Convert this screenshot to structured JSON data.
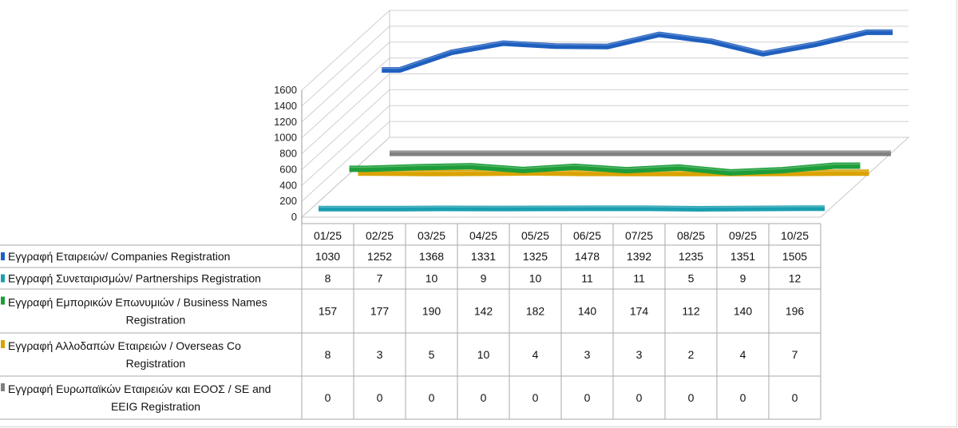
{
  "chart_data": {
    "type": "line",
    "title": "",
    "xlabel": "",
    "ylabel": "",
    "ylim": [
      0,
      1600
    ],
    "yticks": [
      0,
      200,
      400,
      600,
      800,
      1000,
      1200,
      1400,
      1600
    ],
    "categories": [
      "01/25",
      "02/25",
      "03/25",
      "04/25",
      "05/25",
      "06/25",
      "07/25",
      "08/25",
      "09/25",
      "10/25"
    ],
    "series": [
      {
        "name_lines": [
          "Εγγραφή Εταιρειών/ Companies Registration"
        ],
        "color": "#1f5fbf",
        "values": [
          1030,
          1252,
          1368,
          1331,
          1325,
          1478,
          1392,
          1235,
          1351,
          1505
        ]
      },
      {
        "name_lines": [
          "Εγγραφή Συνεταιρισμών/ Partnerships Registration"
        ],
        "color": "#1a9fb0",
        "values": [
          8,
          7,
          10,
          9,
          10,
          11,
          11,
          5,
          9,
          12
        ]
      },
      {
        "name_lines": [
          "Εγγραφή Εμπορικών Επωνυμιών / Business Names",
          "Registration"
        ],
        "color": "#1e9e3a",
        "values": [
          157,
          177,
          190,
          142,
          182,
          140,
          174,
          112,
          140,
          196
        ]
      },
      {
        "name_lines": [
          "Εγγραφή Αλλοδαπών Εταιρειών / Overseas Co",
          "Registration"
        ],
        "color": "#d9a300",
        "values": [
          8,
          3,
          5,
          10,
          4,
          3,
          3,
          2,
          4,
          7
        ]
      },
      {
        "name_lines": [
          "Εγγραφή Ευρωπαϊκών Εταιρειών και ΕΟΟΣ / SE and",
          "EEIG Registration"
        ],
        "color": "#808080",
        "values": [
          0,
          0,
          0,
          0,
          0,
          0,
          0,
          0,
          0,
          0
        ]
      }
    ],
    "legend": "table-left",
    "grid": true
  }
}
